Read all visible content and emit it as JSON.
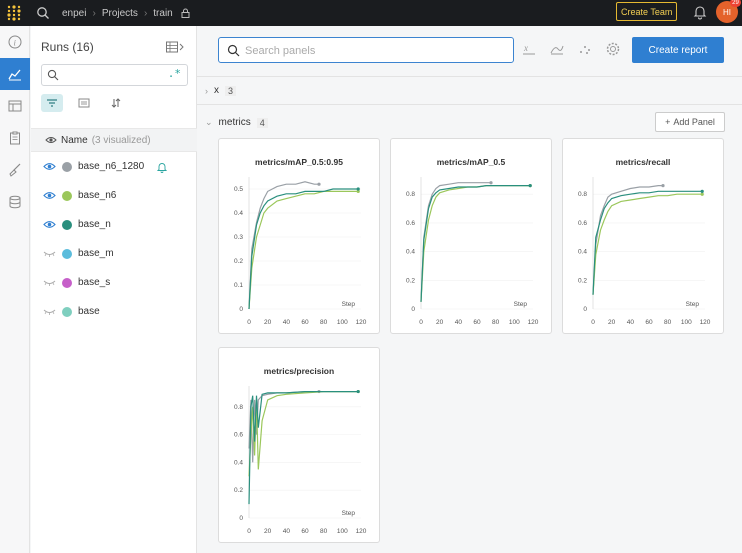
{
  "topbar": {
    "breadcrumb": [
      "enpei",
      "Projects",
      "train"
    ],
    "create_team_label": "Create Team",
    "avatar_initials": "HI",
    "avatar_badge": "29"
  },
  "runs_panel": {
    "title": "Runs (16)",
    "search_regex_label": ".*",
    "name_header": "Name",
    "visualized_note": "(3 visualized)",
    "runs": [
      {
        "name": "base_n6_1280",
        "color": "#9aa0a6",
        "visible": true,
        "alert": true
      },
      {
        "name": "base_n6",
        "color": "#9bc75b",
        "visible": true,
        "alert": false
      },
      {
        "name": "base_n",
        "color": "#2a8f7e",
        "visible": true,
        "alert": false
      },
      {
        "name": "base_m",
        "color": "#5bbcdc",
        "visible": false,
        "alert": false
      },
      {
        "name": "base_s",
        "color": "#c65fc9",
        "visible": false,
        "alert": false
      },
      {
        "name": "base",
        "color": "#7fcfbf",
        "visible": false,
        "alert": false
      }
    ]
  },
  "main": {
    "search_placeholder": "Search panels",
    "create_report_label": "Create report",
    "sections": [
      {
        "name": "x",
        "count": "3",
        "collapsed": true
      },
      {
        "name": "metrics",
        "count": "4",
        "collapsed": false
      }
    ],
    "add_panel_label": "Add Panel"
  },
  "chart_data": [
    {
      "type": "line",
      "title": "metrics/mAP_0.5:0.95",
      "xlabel": "Step",
      "xlim": [
        0,
        120
      ],
      "ylim": [
        0,
        0.55
      ],
      "x_ticks": [
        "0",
        "20",
        "40",
        "60",
        "80",
        "100",
        "120"
      ],
      "y_ticks": [
        "0",
        "0.1",
        "0.2",
        "0.3",
        "0.4",
        "0.5"
      ],
      "series": [
        {
          "name": "base_n6_1280",
          "color": "#9aa0a6",
          "x": [
            0,
            3,
            8,
            12,
            16,
            20,
            30,
            40,
            50,
            60,
            70,
            75
          ],
          "y": [
            0.0,
            0.25,
            0.36,
            0.42,
            0.46,
            0.49,
            0.51,
            0.52,
            0.52,
            0.53,
            0.52,
            0.52
          ]
        },
        {
          "name": "base_n6",
          "color": "#9bc75b",
          "x": [
            0,
            3,
            8,
            12,
            16,
            20,
            30,
            40,
            50,
            60,
            70,
            80,
            90,
            100,
            110,
            117
          ],
          "y": [
            0.0,
            0.17,
            0.3,
            0.35,
            0.4,
            0.42,
            0.45,
            0.46,
            0.47,
            0.48,
            0.48,
            0.49,
            0.49,
            0.49,
            0.49,
            0.49
          ]
        },
        {
          "name": "base_n",
          "color": "#2a8f7e",
          "x": [
            0,
            3,
            8,
            12,
            16,
            20,
            30,
            40,
            50,
            60,
            70,
            80,
            90,
            100,
            110,
            117
          ],
          "y": [
            0.0,
            0.22,
            0.35,
            0.4,
            0.43,
            0.45,
            0.47,
            0.48,
            0.48,
            0.49,
            0.49,
            0.49,
            0.5,
            0.5,
            0.5,
            0.5
          ]
        }
      ]
    },
    {
      "type": "line",
      "title": "metrics/mAP_0.5",
      "xlabel": "Step",
      "xlim": [
        0,
        120
      ],
      "ylim": [
        0,
        0.92
      ],
      "x_ticks": [
        "0",
        "20",
        "40",
        "60",
        "80",
        "100",
        "120"
      ],
      "y_ticks": [
        "0",
        "0.2",
        "0.4",
        "0.6",
        "0.8"
      ],
      "series": [
        {
          "name": "base_n6_1280",
          "color": "#9aa0a6",
          "x": [
            0,
            3,
            8,
            12,
            16,
            20,
            30,
            40,
            50,
            60,
            70,
            75
          ],
          "y": [
            0.05,
            0.5,
            0.72,
            0.8,
            0.84,
            0.86,
            0.87,
            0.88,
            0.88,
            0.88,
            0.88,
            0.88
          ]
        },
        {
          "name": "base_n6",
          "color": "#9bc75b",
          "x": [
            0,
            3,
            8,
            12,
            16,
            20,
            30,
            40,
            50,
            60,
            70,
            80,
            90,
            100,
            110,
            117
          ],
          "y": [
            0.05,
            0.4,
            0.62,
            0.72,
            0.78,
            0.81,
            0.83,
            0.84,
            0.85,
            0.85,
            0.86,
            0.86,
            0.86,
            0.86,
            0.86,
            0.86
          ]
        },
        {
          "name": "base_n",
          "color": "#2a8f7e",
          "x": [
            0,
            3,
            8,
            12,
            16,
            20,
            30,
            40,
            50,
            60,
            70,
            80,
            90,
            100,
            110,
            117
          ],
          "y": [
            0.05,
            0.48,
            0.7,
            0.78,
            0.81,
            0.83,
            0.84,
            0.85,
            0.85,
            0.85,
            0.86,
            0.86,
            0.86,
            0.86,
            0.86,
            0.86
          ]
        }
      ]
    },
    {
      "type": "line",
      "title": "metrics/recall",
      "xlabel": "Step",
      "xlim": [
        0,
        120
      ],
      "ylim": [
        0,
        0.92
      ],
      "x_ticks": [
        "0",
        "20",
        "40",
        "60",
        "80",
        "100",
        "120"
      ],
      "y_ticks": [
        "0",
        "0.2",
        "0.4",
        "0.6",
        "0.8"
      ],
      "series": [
        {
          "name": "base_n6_1280",
          "color": "#9aa0a6",
          "x": [
            0,
            3,
            8,
            12,
            16,
            20,
            30,
            40,
            50,
            60,
            70,
            75
          ],
          "y": [
            0.1,
            0.45,
            0.65,
            0.72,
            0.78,
            0.8,
            0.82,
            0.84,
            0.85,
            0.85,
            0.86,
            0.86
          ]
        },
        {
          "name": "base_n6",
          "color": "#9bc75b",
          "x": [
            0,
            3,
            8,
            12,
            16,
            20,
            30,
            40,
            50,
            60,
            70,
            80,
            90,
            100,
            110,
            117
          ],
          "y": [
            0.1,
            0.38,
            0.55,
            0.62,
            0.68,
            0.72,
            0.75,
            0.76,
            0.77,
            0.78,
            0.79,
            0.79,
            0.8,
            0.8,
            0.8,
            0.8
          ]
        },
        {
          "name": "base_n",
          "color": "#2a8f7e",
          "x": [
            0,
            3,
            8,
            12,
            16,
            20,
            30,
            40,
            50,
            60,
            70,
            80,
            90,
            100,
            110,
            117
          ],
          "y": [
            0.1,
            0.5,
            0.62,
            0.7,
            0.74,
            0.77,
            0.79,
            0.8,
            0.81,
            0.81,
            0.82,
            0.82,
            0.82,
            0.82,
            0.82,
            0.82
          ]
        }
      ]
    },
    {
      "type": "line",
      "title": "metrics/precision",
      "xlabel": "Step",
      "xlim": [
        0,
        120
      ],
      "ylim": [
        0,
        0.95
      ],
      "x_ticks": [
        "0",
        "20",
        "40",
        "60",
        "80",
        "100",
        "120"
      ],
      "y_ticks": [
        "0",
        "0.2",
        "0.4",
        "0.6",
        "0.8"
      ],
      "series": [
        {
          "name": "base_n6_1280",
          "color": "#9aa0a6",
          "x": [
            0,
            2,
            4,
            6,
            8,
            10,
            14,
            20,
            30,
            40,
            60,
            75
          ],
          "y": [
            0.5,
            0.85,
            0.4,
            0.85,
            0.6,
            0.85,
            0.88,
            0.89,
            0.9,
            0.9,
            0.91,
            0.91
          ]
        },
        {
          "name": "base_n6",
          "color": "#9bc75b",
          "x": [
            0,
            2,
            4,
            6,
            8,
            10,
            14,
            20,
            30,
            40,
            60,
            80,
            100,
            117
          ],
          "y": [
            0.3,
            0.6,
            0.8,
            0.45,
            0.85,
            0.35,
            0.7,
            0.85,
            0.88,
            0.89,
            0.9,
            0.91,
            0.91,
            0.91
          ]
        },
        {
          "name": "base_n",
          "color": "#2a8f7e",
          "x": [
            0,
            2,
            4,
            6,
            8,
            10,
            14,
            20,
            30,
            40,
            60,
            80,
            100,
            117
          ],
          "y": [
            0.1,
            0.8,
            0.88,
            0.55,
            0.88,
            0.65,
            0.89,
            0.9,
            0.9,
            0.9,
            0.91,
            0.91,
            0.91,
            0.91
          ]
        }
      ]
    }
  ]
}
